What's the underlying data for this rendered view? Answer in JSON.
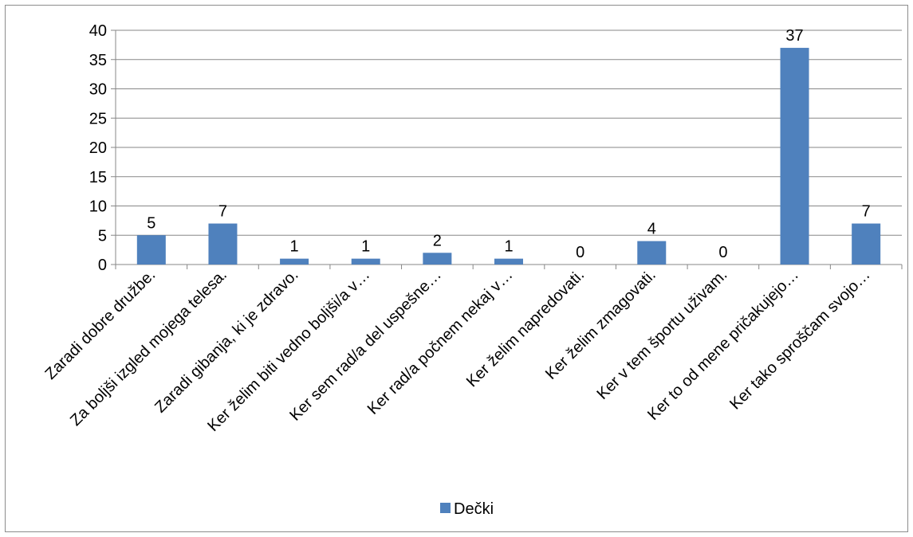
{
  "chart_data": {
    "type": "bar",
    "categories": [
      "Zaradi dobre družbe.",
      "Za boljši izgled mojega telesa.",
      "Zaradi gibanja, ki je zdravo.",
      "Ker želim biti vedno boljši/a v…",
      "Ker sem rad/a del uspešne…",
      "Ker rad/a počnem nekaj v…",
      "Ker želim napredovati.",
      "Ker želim zmagovati.",
      "Ker v tem športu uživam.",
      "Ker to od mene pričakujejo…",
      "Ker tako sproščam svojo…"
    ],
    "series": [
      {
        "name": "Dečki",
        "values": [
          5,
          7,
          1,
          1,
          2,
          1,
          0,
          4,
          0,
          37,
          7
        ],
        "color": "#4f81bd"
      }
    ],
    "ylim": [
      0,
      40
    ],
    "yticks": [
      0,
      5,
      10,
      15,
      20,
      25,
      30,
      35,
      40
    ],
    "grid": true,
    "data_labels": true,
    "legend_position": "bottom"
  }
}
